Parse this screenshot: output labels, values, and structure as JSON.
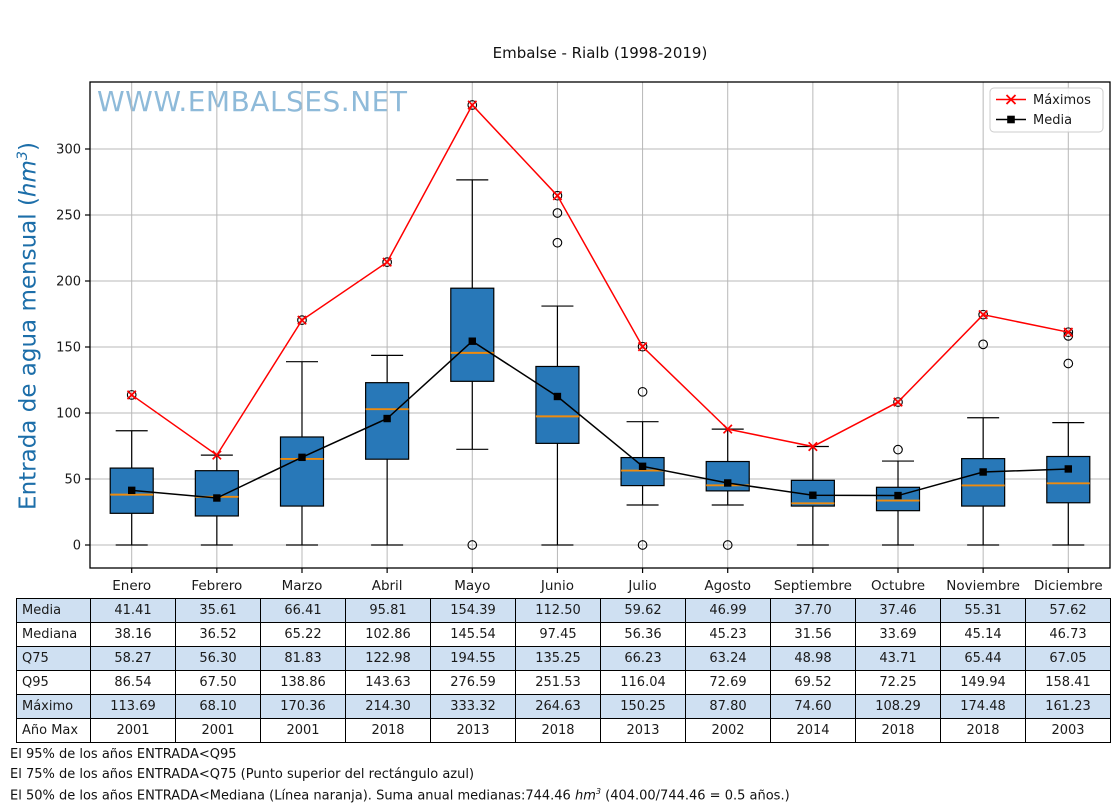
{
  "title": "Embalse - Rialb (1998-2019)",
  "watermark": "WWW.EMBALSES.NET",
  "y_axis": {
    "label_prefix": "Entrada de agua mensual (",
    "label_math": "hm",
    "label_sup": "3",
    "label_suffix": ")"
  },
  "legend": {
    "items": [
      {
        "label": "Máximos",
        "marker": "x-marker-icon",
        "color": "#ff0000"
      },
      {
        "label": "Media",
        "marker": "square-marker-icon",
        "color": "#000000"
      }
    ]
  },
  "colors": {
    "box_fill": "#2878b8",
    "box_edge": "#000000",
    "median_line": "#ee8b0e",
    "max_line": "#ff0000",
    "mean_line": "#000000",
    "grid": "#b8b8b8",
    "frame": "#000000",
    "axis_label": "#1c6ea9",
    "watermark": "#1f77b4",
    "table_band": "#cfe0f2"
  },
  "chart_data": {
    "type": "boxplot-with-lines",
    "title": "Embalse - Rialb (1998-2019)",
    "ylabel": "Entrada de agua mensual (hm3)",
    "ylim": [
      -17,
      351
    ],
    "yticks": [
      0,
      50,
      100,
      150,
      200,
      250,
      300
    ],
    "grid": true,
    "legend_position": "upper-right",
    "categories": [
      "Enero",
      "Febrero",
      "Marzo",
      "Abril",
      "Mayo",
      "Junio",
      "Julio",
      "Agosto",
      "Septiembre",
      "Octubre",
      "Noviembre",
      "Diciembre"
    ],
    "series": [
      {
        "name": "Máximos",
        "type": "line",
        "marker": "x",
        "color": "#ff0000",
        "values": [
          113.69,
          68.1,
          170.36,
          214.3,
          333.32,
          264.63,
          150.25,
          87.8,
          74.6,
          108.29,
          174.48,
          161.23
        ]
      },
      {
        "name": "Media",
        "type": "line",
        "marker": "square",
        "color": "#000000",
        "values": [
          41.41,
          35.61,
          66.41,
          95.81,
          154.39,
          112.5,
          59.62,
          46.99,
          37.7,
          37.46,
          55.31,
          57.62
        ]
      }
    ],
    "boxes": [
      {
        "month": "Enero",
        "q1": 24.0,
        "median": 38.16,
        "q3": 58.27,
        "whisker_low": 0,
        "whisker_high": 86.54,
        "fliers": [
          113.69
        ]
      },
      {
        "month": "Febrero",
        "q1": 22.0,
        "median": 36.52,
        "q3": 56.3,
        "whisker_low": 0,
        "whisker_high": 68.1,
        "fliers": []
      },
      {
        "month": "Marzo",
        "q1": 29.5,
        "median": 65.22,
        "q3": 81.83,
        "whisker_low": 0,
        "whisker_high": 138.86,
        "fliers": [
          170.36
        ]
      },
      {
        "month": "Abril",
        "q1": 65.0,
        "median": 102.86,
        "q3": 122.98,
        "whisker_low": 0,
        "whisker_high": 143.63,
        "fliers": [
          214.3
        ]
      },
      {
        "month": "Mayo",
        "q1": 124.0,
        "median": 145.54,
        "q3": 194.55,
        "whisker_low": 72.5,
        "whisker_high": 276.59,
        "fliers": [
          0,
          333.32
        ]
      },
      {
        "month": "Junio",
        "q1": 77.0,
        "median": 97.45,
        "q3": 135.25,
        "whisker_low": 0,
        "whisker_high": 181.0,
        "fliers": [
          229.0,
          251.53,
          264.63
        ]
      },
      {
        "month": "Julio",
        "q1": 45.0,
        "median": 56.36,
        "q3": 66.23,
        "whisker_low": 30.3,
        "whisker_high": 93.4,
        "fliers": [
          0,
          116.04,
          150.25
        ]
      },
      {
        "month": "Agosto",
        "q1": 41.0,
        "median": 45.23,
        "q3": 63.24,
        "whisker_low": 30.3,
        "whisker_high": 87.8,
        "fliers": [
          0
        ]
      },
      {
        "month": "Septiembre",
        "q1": 29.5,
        "median": 31.56,
        "q3": 48.98,
        "whisker_low": 0,
        "whisker_high": 74.6,
        "fliers": []
      },
      {
        "month": "Octubre",
        "q1": 26.0,
        "median": 33.69,
        "q3": 43.71,
        "whisker_low": 0,
        "whisker_high": 63.6,
        "fliers": [
          72.25,
          108.29
        ]
      },
      {
        "month": "Noviembre",
        "q1": 29.5,
        "median": 45.14,
        "q3": 65.44,
        "whisker_low": 0,
        "whisker_high": 96.4,
        "fliers": [
          152.0,
          174.48
        ]
      },
      {
        "month": "Diciembre",
        "q1": 32.0,
        "median": 46.73,
        "q3": 67.05,
        "whisker_low": 0,
        "whisker_high": 92.7,
        "fliers": [
          137.5,
          158.41,
          161.23
        ]
      }
    ]
  },
  "table": {
    "rows": [
      {
        "label": "Media",
        "band": true,
        "values": [
          "41.41",
          "35.61",
          "66.41",
          "95.81",
          "154.39",
          "112.50",
          "59.62",
          "46.99",
          "37.70",
          "37.46",
          "55.31",
          "57.62"
        ]
      },
      {
        "label": "Mediana",
        "band": false,
        "values": [
          "38.16",
          "36.52",
          "65.22",
          "102.86",
          "145.54",
          "97.45",
          "56.36",
          "45.23",
          "31.56",
          "33.69",
          "45.14",
          "46.73"
        ]
      },
      {
        "label": "Q75",
        "band": true,
        "values": [
          "58.27",
          "56.30",
          "81.83",
          "122.98",
          "194.55",
          "135.25",
          "66.23",
          "63.24",
          "48.98",
          "43.71",
          "65.44",
          "67.05"
        ]
      },
      {
        "label": "Q95",
        "band": false,
        "values": [
          "86.54",
          "67.50",
          "138.86",
          "143.63",
          "276.59",
          "251.53",
          "116.04",
          "72.69",
          "69.52",
          "72.25",
          "149.94",
          "158.41"
        ]
      },
      {
        "label": "Máximo",
        "band": true,
        "values": [
          "113.69",
          "68.10",
          "170.36",
          "214.30",
          "333.32",
          "264.63",
          "150.25",
          "87.80",
          "74.60",
          "108.29",
          "174.48",
          "161.23"
        ]
      },
      {
        "label": "Año Max",
        "band": false,
        "values": [
          "2001",
          "2001",
          "2001",
          "2018",
          "2013",
          "2018",
          "2013",
          "2002",
          "2014",
          "2018",
          "2018",
          "2003"
        ]
      }
    ]
  },
  "footer": {
    "line1": "El 95% de los años ENTRADA<Q95",
    "line2": "El 75% de los años ENTRADA<Q75 (Punto superior del rectángulo azul)",
    "line3_prefix": "El 50% de los años ENTRADA<Mediana (Línea naranja). Suma anual medianas:744.46 ",
    "line3_math": "hm",
    "line3_sup": "3",
    "line3_suffix": " (404.00/744.46 = 0.5 años.)"
  }
}
